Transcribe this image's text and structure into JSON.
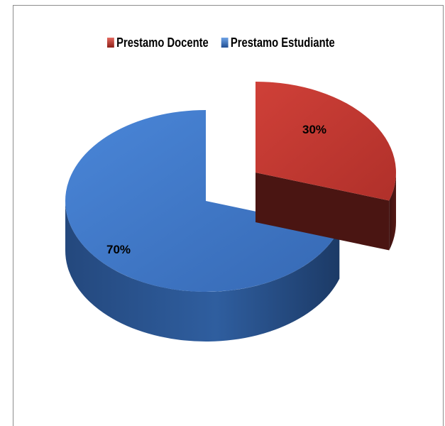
{
  "chart_data": {
    "type": "pie",
    "title": "",
    "legend_position": "top",
    "series": [
      {
        "name": "Prestamo Docente",
        "value": 30,
        "label": "30%",
        "color": "#c0392f"
      },
      {
        "name": "Prestamo Estudiante",
        "value": 70,
        "label": "70%",
        "color": "#3a72c2"
      }
    ]
  }
}
